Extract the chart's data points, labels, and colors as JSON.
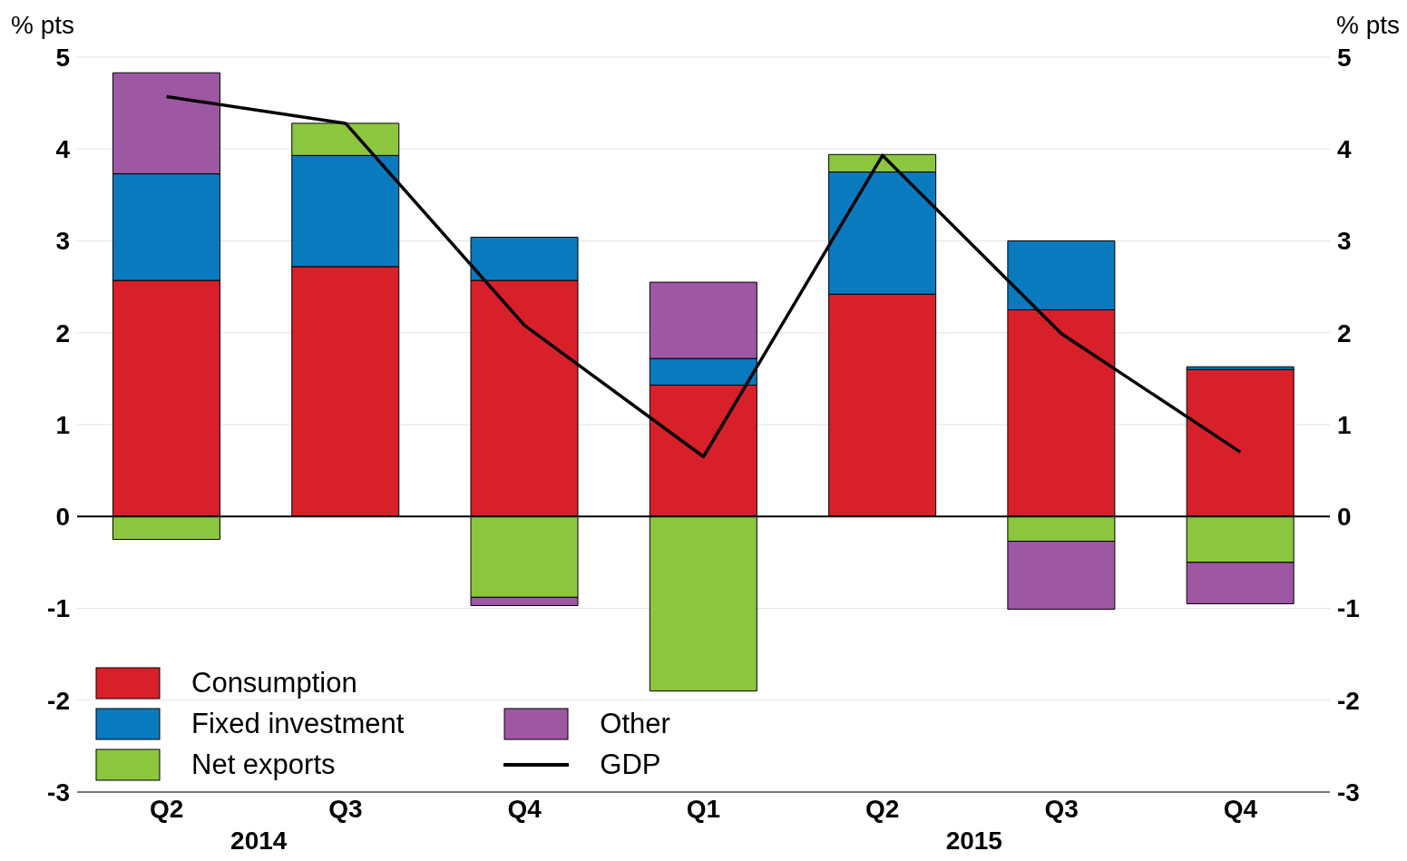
{
  "chart_data": {
    "type": "bar",
    "stacked": true,
    "ylabel": "% pts",
    "y2label": "% pts",
    "categories": [
      "Q2",
      "Q3",
      "Q4",
      "Q1",
      "Q2",
      "Q3",
      "Q4"
    ],
    "series": [
      {
        "name": "Consumption",
        "color": "#d7202a",
        "values": [
          2.57,
          2.72,
          2.57,
          1.43,
          2.42,
          2.25,
          1.6
        ]
      },
      {
        "name": "Fixed investment",
        "color": "#0a7abf",
        "values": [
          1.16,
          1.21,
          0.47,
          0.29,
          1.33,
          0.75,
          0.03
        ]
      },
      {
        "name": "Net exports",
        "color": "#8cc63f",
        "values": [
          -0.25,
          0.35,
          -0.88,
          -1.9,
          0.19,
          -0.27,
          -0.5
        ]
      },
      {
        "name": "Other",
        "color": "#9e57a3",
        "values": [
          1.1,
          0,
          -0.09,
          0.83,
          0,
          -0.74,
          -0.45
        ]
      },
      {
        "name": "GDP",
        "type": "line",
        "color": "#000000",
        "values": [
          4.57,
          4.28,
          2.08,
          0.65,
          3.93,
          1.99,
          0.7
        ]
      }
    ],
    "ylim": [
      -3,
      5
    ],
    "yticks": [
      -3,
      -2,
      -1,
      0,
      1,
      2,
      3,
      4,
      5
    ],
    "y2lim": [
      -3,
      5
    ],
    "y2ticks": [
      -3,
      -2,
      -1,
      0,
      1,
      2,
      3,
      4,
      5
    ],
    "ref_lines": [
      {
        "axis": "y",
        "value": 0,
        "color": "#000000"
      }
    ],
    "annotations": [
      "2014",
      "2015"
    ],
    "grid": "y",
    "legend": "bottom left",
    "marker": "none",
    "line_style": "solid"
  }
}
